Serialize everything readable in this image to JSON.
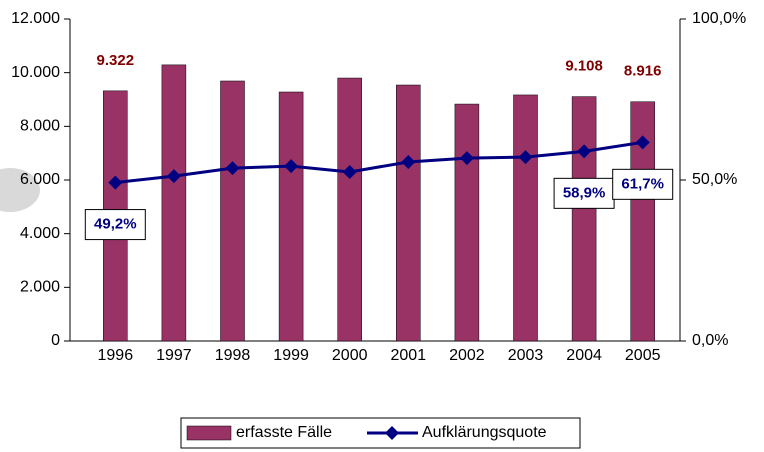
{
  "chart_data": {
    "type": "bar",
    "categories": [
      "1996",
      "1997",
      "1998",
      "1999",
      "2000",
      "2001",
      "2002",
      "2003",
      "2004",
      "2005"
    ],
    "series": [
      {
        "name": "erfasste Fälle",
        "type": "bar",
        "color": "#993366",
        "values": [
          9322,
          10290,
          9690,
          9280,
          9800,
          9540,
          8830,
          9170,
          9108,
          8916
        ],
        "value_labels": [
          "9.322",
          null,
          null,
          null,
          null,
          null,
          null,
          null,
          "9.108",
          "8.916"
        ]
      },
      {
        "name": "Aufklärungsquote",
        "type": "line",
        "axis": "y2",
        "color": "#000080",
        "values": [
          49.2,
          51.2,
          53.7,
          54.3,
          52.5,
          55.6,
          56.8,
          57.1,
          58.9,
          61.7
        ],
        "value_labels": [
          "49,2%",
          null,
          null,
          null,
          null,
          null,
          null,
          null,
          "58,9%",
          "61,7%"
        ]
      }
    ],
    "ylim": [
      0,
      12000
    ],
    "yticks": [
      {
        "value": 0,
        "label": "0"
      },
      {
        "value": 2000,
        "label": "2.000"
      },
      {
        "value": 4000,
        "label": "4.000"
      },
      {
        "value": 6000,
        "label": "6.000"
      },
      {
        "value": 8000,
        "label": "8.000"
      },
      {
        "value": 10000,
        "label": "10.000"
      },
      {
        "value": 12000,
        "label": "12.000"
      }
    ],
    "y2lim": [
      0,
      100
    ],
    "y2ticks": [
      {
        "value": 0,
        "label": "0,0%"
      },
      {
        "value": 50,
        "label": "50,0%"
      },
      {
        "value": 100,
        "label": "100,0%"
      }
    ],
    "legend": "bottom"
  }
}
